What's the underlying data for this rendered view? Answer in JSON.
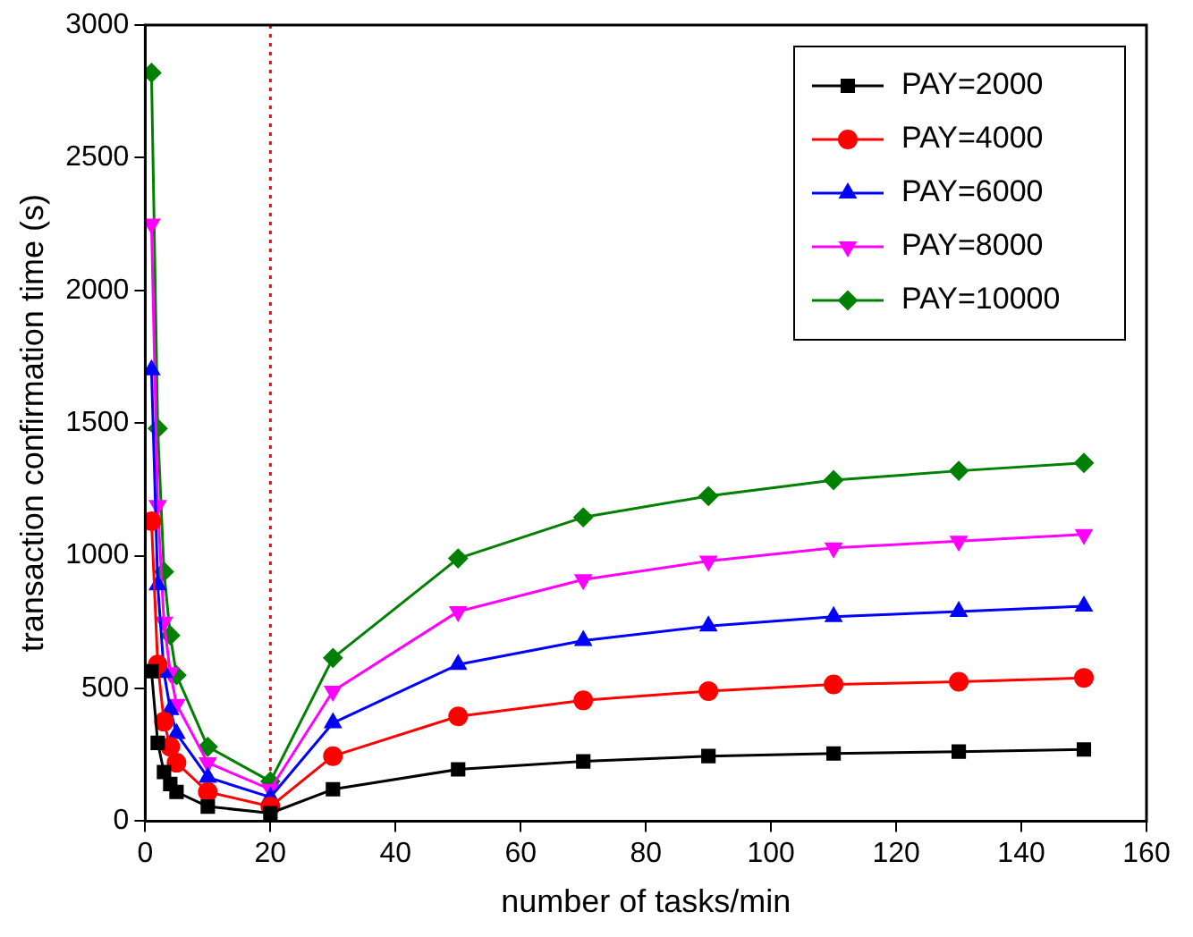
{
  "chart_data": {
    "type": "line",
    "xlabel": "number of tasks/min",
    "ylabel": "transaction confirmation time (s)",
    "x": [
      1,
      2,
      3,
      4,
      5,
      10,
      20,
      30,
      50,
      70,
      90,
      110,
      130,
      150
    ],
    "series": [
      {
        "name": "PAY=2000",
        "color": "#000000",
        "marker": "square",
        "values": [
          565,
          295,
          185,
          140,
          110,
          55,
          30,
          120,
          195,
          225,
          245,
          255,
          262,
          270
        ]
      },
      {
        "name": "PAY=4000",
        "color": "#ff0000",
        "marker": "circle",
        "values": [
          1130,
          590,
          375,
          280,
          220,
          110,
          55,
          245,
          395,
          455,
          490,
          515,
          525,
          540
        ]
      },
      {
        "name": "PAY=6000",
        "color": "#0000ff",
        "marker": "triangle",
        "values": [
          1700,
          890,
          560,
          420,
          330,
          165,
          90,
          370,
          590,
          680,
          735,
          770,
          790,
          810
        ]
      },
      {
        "name": "PAY=8000",
        "color": "#ff00ff",
        "marker": "triangle-down",
        "values": [
          2250,
          1190,
          750,
          560,
          440,
          220,
          120,
          490,
          790,
          910,
          980,
          1030,
          1055,
          1080
        ]
      },
      {
        "name": "PAY=10000",
        "color": "#008000",
        "marker": "diamond",
        "values": [
          2820,
          1480,
          940,
          700,
          550,
          280,
          150,
          615,
          990,
          1145,
          1225,
          1285,
          1320,
          1350
        ]
      }
    ],
    "xlim": [
      0,
      160
    ],
    "xticks": [
      0,
      20,
      40,
      60,
      80,
      100,
      120,
      140,
      160
    ],
    "ylim": [
      0,
      3000
    ],
    "yticks": [
      0,
      500,
      1000,
      1500,
      2000,
      2500,
      3000
    ],
    "ref_lines": [
      {
        "axis": "x",
        "value": 20,
        "color": "#ff0000",
        "line_style": "dotted"
      }
    ],
    "grid": false,
    "legend": "top right",
    "line_style": "solid"
  }
}
